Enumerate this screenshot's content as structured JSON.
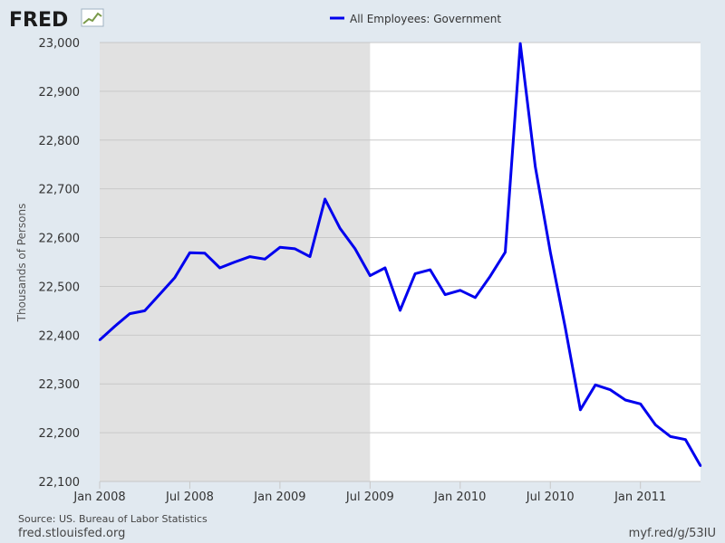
{
  "logo": {
    "text": "FRED"
  },
  "footer": {
    "source": "Source: US. Bureau of Labor Statistics",
    "site": "fred.stlouisfed.org",
    "shortlink": "myf.red/g/53IU"
  },
  "colors": {
    "background": "#e1e9f0",
    "plot": "#ffffff",
    "recession": "#e1e1e1",
    "series": "#0000ee",
    "grid": "#c8c8c8"
  },
  "chart_data": {
    "type": "line",
    "title": "",
    "xlabel": "",
    "ylabel": "Thousands of Persons",
    "ylim": [
      22100,
      23000
    ],
    "yticks": [
      22100,
      22200,
      22300,
      22400,
      22500,
      22600,
      22700,
      22800,
      22900,
      23000
    ],
    "ytick_labels": [
      "22,100",
      "22,200",
      "22,300",
      "22,400",
      "22,500",
      "22,600",
      "22,700",
      "22,800",
      "22,900",
      "23,000"
    ],
    "xlim": [
      "2008-01",
      "2011-05"
    ],
    "xticks": [
      "2008-01",
      "2008-07",
      "2009-01",
      "2009-07",
      "2010-01",
      "2010-07",
      "2011-01"
    ],
    "xtick_labels": [
      "Jan 2008",
      "Jul 2008",
      "Jan 2009",
      "Jul 2009",
      "Jan 2010",
      "Jul 2010",
      "Jan 2011"
    ],
    "grid": true,
    "legend_position": "top-center",
    "recession_shading": {
      "start": "2008-01",
      "end": "2009-06"
    },
    "series": [
      {
        "name": "All Employees: Government",
        "x": [
          "2008-01",
          "2008-02",
          "2008-03",
          "2008-04",
          "2008-05",
          "2008-06",
          "2008-07",
          "2008-08",
          "2008-09",
          "2008-10",
          "2008-11",
          "2008-12",
          "2009-01",
          "2009-02",
          "2009-03",
          "2009-04",
          "2009-05",
          "2009-06",
          "2009-07",
          "2009-08",
          "2009-09",
          "2009-10",
          "2009-11",
          "2009-12",
          "2010-01",
          "2010-02",
          "2010-03",
          "2010-04",
          "2010-05",
          "2010-06",
          "2010-07",
          "2010-08",
          "2010-09",
          "2010-10",
          "2010-11",
          "2010-12",
          "2011-01",
          "2011-02",
          "2011-03",
          "2011-04",
          "2011-05"
        ],
        "values": [
          22390,
          22418,
          22444,
          22450,
          22484,
          22518,
          22569,
          22568,
          22538,
          22550,
          22561,
          22556,
          22580,
          22577,
          22561,
          22679,
          22619,
          22577,
          22522,
          22538,
          22451,
          22526,
          22534,
          22483,
          22492,
          22477,
          22521,
          22570,
          22998,
          22745,
          22570,
          22415,
          22247,
          22298,
          22288,
          22267,
          22259,
          22216,
          22192,
          22186,
          22132
        ]
      }
    ]
  }
}
